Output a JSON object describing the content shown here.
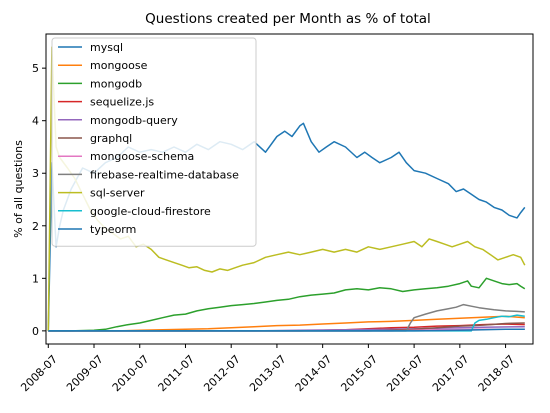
{
  "chart_data": {
    "type": "line",
    "title": "Questions created per Month as % of total",
    "xlabel": "",
    "ylabel": "% of all questions",
    "xlim": [
      2008.45,
      2019.1
    ],
    "ylim": [
      -0.25,
      5.65
    ],
    "x_ticks": [
      {
        "value": 2008.5,
        "label": "2008-07"
      },
      {
        "value": 2009.5,
        "label": "2009-07"
      },
      {
        "value": 2010.5,
        "label": "2010-07"
      },
      {
        "value": 2011.5,
        "label": "2011-07"
      },
      {
        "value": 2012.5,
        "label": "2012-07"
      },
      {
        "value": 2013.5,
        "label": "2013-07"
      },
      {
        "value": 2014.5,
        "label": "2014-07"
      },
      {
        "value": 2015.5,
        "label": "2015-07"
      },
      {
        "value": 2016.5,
        "label": "2016-07"
      },
      {
        "value": 2017.5,
        "label": "2017-07"
      },
      {
        "value": 2018.5,
        "label": "2018-07"
      }
    ],
    "y_ticks": [
      0,
      1,
      2,
      3,
      4,
      5
    ],
    "grid": false,
    "legend_position": "top-left",
    "series": [
      {
        "name": "mysql",
        "color": "#1f77b4",
        "points": [
          [
            2008.5,
            0
          ],
          [
            2008.58,
            3.2
          ],
          [
            2008.67,
            1.6
          ],
          [
            2008.75,
            2.0
          ],
          [
            2008.83,
            2.3
          ],
          [
            2009.0,
            2.7
          ],
          [
            2009.25,
            3.1
          ],
          [
            2009.5,
            3.0
          ],
          [
            2009.75,
            3.2
          ],
          [
            2010.0,
            3.3
          ],
          [
            2010.25,
            3.5
          ],
          [
            2010.5,
            3.4
          ],
          [
            2010.75,
            3.45
          ],
          [
            2011.0,
            3.4
          ],
          [
            2011.25,
            3.5
          ],
          [
            2011.5,
            3.4
          ],
          [
            2011.75,
            3.55
          ],
          [
            2012.0,
            3.45
          ],
          [
            2012.25,
            3.6
          ],
          [
            2012.5,
            3.55
          ],
          [
            2012.75,
            3.45
          ],
          [
            2013.0,
            3.6
          ],
          [
            2013.25,
            3.4
          ],
          [
            2013.5,
            3.7
          ],
          [
            2013.67,
            3.8
          ],
          [
            2013.83,
            3.7
          ],
          [
            2014.0,
            3.9
          ],
          [
            2014.08,
            3.95
          ],
          [
            2014.25,
            3.6
          ],
          [
            2014.42,
            3.4
          ],
          [
            2014.58,
            3.5
          ],
          [
            2014.75,
            3.6
          ],
          [
            2015.0,
            3.5
          ],
          [
            2015.25,
            3.3
          ],
          [
            2015.42,
            3.4
          ],
          [
            2015.58,
            3.3
          ],
          [
            2015.75,
            3.2
          ],
          [
            2016.0,
            3.3
          ],
          [
            2016.17,
            3.4
          ],
          [
            2016.33,
            3.2
          ],
          [
            2016.5,
            3.05
          ],
          [
            2016.75,
            3.0
          ],
          [
            2017.0,
            2.9
          ],
          [
            2017.25,
            2.8
          ],
          [
            2017.42,
            2.65
          ],
          [
            2017.58,
            2.7
          ],
          [
            2017.75,
            2.6
          ],
          [
            2017.92,
            2.5
          ],
          [
            2018.08,
            2.45
          ],
          [
            2018.25,
            2.35
          ],
          [
            2018.42,
            2.3
          ],
          [
            2018.58,
            2.2
          ],
          [
            2018.75,
            2.15
          ],
          [
            2018.83,
            2.25
          ],
          [
            2018.92,
            2.35
          ]
        ]
      },
      {
        "name": "mongoose",
        "color": "#ff7f0e",
        "points": [
          [
            2008.5,
            0
          ],
          [
            2010.0,
            0
          ],
          [
            2010.5,
            0.01
          ],
          [
            2011.0,
            0.02
          ],
          [
            2011.5,
            0.03
          ],
          [
            2012.0,
            0.04
          ],
          [
            2012.5,
            0.06
          ],
          [
            2013.0,
            0.08
          ],
          [
            2013.5,
            0.1
          ],
          [
            2014.0,
            0.11
          ],
          [
            2014.5,
            0.13
          ],
          [
            2015.0,
            0.15
          ],
          [
            2015.5,
            0.17
          ],
          [
            2016.0,
            0.18
          ],
          [
            2016.5,
            0.2
          ],
          [
            2017.0,
            0.22
          ],
          [
            2017.5,
            0.24
          ],
          [
            2018.0,
            0.26
          ],
          [
            2018.5,
            0.28
          ],
          [
            2018.92,
            0.25
          ]
        ]
      },
      {
        "name": "mongodb",
        "color": "#2ca02c",
        "points": [
          [
            2008.5,
            0
          ],
          [
            2009.0,
            0
          ],
          [
            2009.5,
            0.01
          ],
          [
            2009.75,
            0.03
          ],
          [
            2010.0,
            0.08
          ],
          [
            2010.25,
            0.12
          ],
          [
            2010.5,
            0.15
          ],
          [
            2010.75,
            0.2
          ],
          [
            2011.0,
            0.25
          ],
          [
            2011.25,
            0.3
          ],
          [
            2011.5,
            0.32
          ],
          [
            2011.75,
            0.38
          ],
          [
            2012.0,
            0.42
          ],
          [
            2012.25,
            0.45
          ],
          [
            2012.5,
            0.48
          ],
          [
            2012.75,
            0.5
          ],
          [
            2013.0,
            0.52
          ],
          [
            2013.25,
            0.55
          ],
          [
            2013.5,
            0.58
          ],
          [
            2013.75,
            0.6
          ],
          [
            2014.0,
            0.65
          ],
          [
            2014.25,
            0.68
          ],
          [
            2014.5,
            0.7
          ],
          [
            2014.75,
            0.72
          ],
          [
            2015.0,
            0.78
          ],
          [
            2015.25,
            0.8
          ],
          [
            2015.5,
            0.78
          ],
          [
            2015.75,
            0.82
          ],
          [
            2016.0,
            0.8
          ],
          [
            2016.25,
            0.75
          ],
          [
            2016.5,
            0.78
          ],
          [
            2016.75,
            0.8
          ],
          [
            2017.0,
            0.82
          ],
          [
            2017.25,
            0.85
          ],
          [
            2017.5,
            0.9
          ],
          [
            2017.67,
            0.95
          ],
          [
            2017.75,
            0.85
          ],
          [
            2017.92,
            0.82
          ],
          [
            2018.08,
            1.0
          ],
          [
            2018.25,
            0.95
          ],
          [
            2018.42,
            0.9
          ],
          [
            2018.58,
            0.88
          ],
          [
            2018.75,
            0.9
          ],
          [
            2018.83,
            0.85
          ],
          [
            2018.92,
            0.8
          ]
        ]
      },
      {
        "name": "sequelize.js",
        "color": "#d62728",
        "points": [
          [
            2008.5,
            0
          ],
          [
            2014.0,
            0
          ],
          [
            2014.5,
            0.01
          ],
          [
            2015.0,
            0.02
          ],
          [
            2015.5,
            0.04
          ],
          [
            2016.0,
            0.06
          ],
          [
            2016.5,
            0.07
          ],
          [
            2017.0,
            0.09
          ],
          [
            2017.5,
            0.1
          ],
          [
            2018.0,
            0.12
          ],
          [
            2018.5,
            0.13
          ],
          [
            2018.92,
            0.12
          ]
        ]
      },
      {
        "name": "mongodb-query",
        "color": "#9467bd",
        "points": [
          [
            2008.5,
            0
          ],
          [
            2013.0,
            0
          ],
          [
            2014.0,
            0.01
          ],
          [
            2015.0,
            0.02
          ],
          [
            2016.0,
            0.03
          ],
          [
            2017.0,
            0.05
          ],
          [
            2018.0,
            0.07
          ],
          [
            2018.92,
            0.08
          ]
        ]
      },
      {
        "name": "graphql",
        "color": "#8c564b",
        "points": [
          [
            2008.5,
            0
          ],
          [
            2015.5,
            0
          ],
          [
            2016.0,
            0.01
          ],
          [
            2016.5,
            0.03
          ],
          [
            2017.0,
            0.06
          ],
          [
            2017.5,
            0.09
          ],
          [
            2018.0,
            0.11
          ],
          [
            2018.5,
            0.14
          ],
          [
            2018.92,
            0.15
          ]
        ]
      },
      {
        "name": "mongoose-schema",
        "color": "#e377c2",
        "points": [
          [
            2008.5,
            0
          ],
          [
            2016.0,
            0
          ],
          [
            2016.5,
            0.01
          ],
          [
            2017.0,
            0.02
          ],
          [
            2018.0,
            0.03
          ],
          [
            2018.92,
            0.03
          ]
        ]
      },
      {
        "name": "firebase-realtime-database",
        "color": "#7f7f7f",
        "points": [
          [
            2008.5,
            0
          ],
          [
            2016.33,
            0
          ],
          [
            2016.42,
            0.15
          ],
          [
            2016.5,
            0.25
          ],
          [
            2016.75,
            0.32
          ],
          [
            2017.0,
            0.38
          ],
          [
            2017.25,
            0.42
          ],
          [
            2017.42,
            0.45
          ],
          [
            2017.58,
            0.5
          ],
          [
            2017.75,
            0.47
          ],
          [
            2017.92,
            0.44
          ],
          [
            2018.08,
            0.42
          ],
          [
            2018.25,
            0.4
          ],
          [
            2018.5,
            0.38
          ],
          [
            2018.75,
            0.37
          ],
          [
            2018.92,
            0.36
          ]
        ]
      },
      {
        "name": "sql-server",
        "color": "#bcbd22",
        "points": [
          [
            2008.5,
            0
          ],
          [
            2008.58,
            5.4
          ],
          [
            2008.67,
            3.5
          ],
          [
            2008.75,
            3.3
          ],
          [
            2008.92,
            3.1
          ],
          [
            2009.08,
            2.9
          ],
          [
            2009.25,
            2.6
          ],
          [
            2009.42,
            2.3
          ],
          [
            2009.58,
            2.1
          ],
          [
            2009.75,
            1.95
          ],
          [
            2009.92,
            1.85
          ],
          [
            2010.08,
            1.75
          ],
          [
            2010.25,
            1.8
          ],
          [
            2010.42,
            1.6
          ],
          [
            2010.58,
            1.65
          ],
          [
            2010.75,
            1.55
          ],
          [
            2010.92,
            1.4
          ],
          [
            2011.08,
            1.35
          ],
          [
            2011.25,
            1.3
          ],
          [
            2011.42,
            1.25
          ],
          [
            2011.58,
            1.2
          ],
          [
            2011.75,
            1.22
          ],
          [
            2011.92,
            1.15
          ],
          [
            2012.08,
            1.12
          ],
          [
            2012.25,
            1.18
          ],
          [
            2012.42,
            1.15
          ],
          [
            2012.58,
            1.2
          ],
          [
            2012.75,
            1.25
          ],
          [
            2013.0,
            1.3
          ],
          [
            2013.25,
            1.4
          ],
          [
            2013.5,
            1.45
          ],
          [
            2013.75,
            1.5
          ],
          [
            2014.0,
            1.45
          ],
          [
            2014.25,
            1.5
          ],
          [
            2014.5,
            1.55
          ],
          [
            2014.75,
            1.5
          ],
          [
            2015.0,
            1.55
          ],
          [
            2015.25,
            1.5
          ],
          [
            2015.5,
            1.6
          ],
          [
            2015.75,
            1.55
          ],
          [
            2016.0,
            1.6
          ],
          [
            2016.25,
            1.65
          ],
          [
            2016.5,
            1.7
          ],
          [
            2016.67,
            1.6
          ],
          [
            2016.83,
            1.75
          ],
          [
            2017.0,
            1.7
          ],
          [
            2017.17,
            1.65
          ],
          [
            2017.33,
            1.6
          ],
          [
            2017.5,
            1.65
          ],
          [
            2017.67,
            1.7
          ],
          [
            2017.83,
            1.6
          ],
          [
            2018.0,
            1.55
          ],
          [
            2018.17,
            1.45
          ],
          [
            2018.33,
            1.35
          ],
          [
            2018.5,
            1.4
          ],
          [
            2018.67,
            1.45
          ],
          [
            2018.83,
            1.4
          ],
          [
            2018.92,
            1.25
          ]
        ]
      },
      {
        "name": "google-cloud-firestore",
        "color": "#17becf",
        "points": [
          [
            2008.5,
            0
          ],
          [
            2017.75,
            0
          ],
          [
            2017.83,
            0.15
          ],
          [
            2017.92,
            0.2
          ],
          [
            2018.08,
            0.22
          ],
          [
            2018.25,
            0.25
          ],
          [
            2018.42,
            0.28
          ],
          [
            2018.58,
            0.27
          ],
          [
            2018.75,
            0.3
          ],
          [
            2018.92,
            0.28
          ]
        ]
      },
      {
        "name": "typeorm",
        "color": "#1f77b4",
        "points": [
          [
            2008.5,
            0
          ],
          [
            2016.5,
            0
          ],
          [
            2017.0,
            0.005
          ],
          [
            2017.5,
            0.01
          ],
          [
            2018.0,
            0.02
          ],
          [
            2018.5,
            0.03
          ],
          [
            2018.92,
            0.03
          ]
        ]
      }
    ]
  }
}
